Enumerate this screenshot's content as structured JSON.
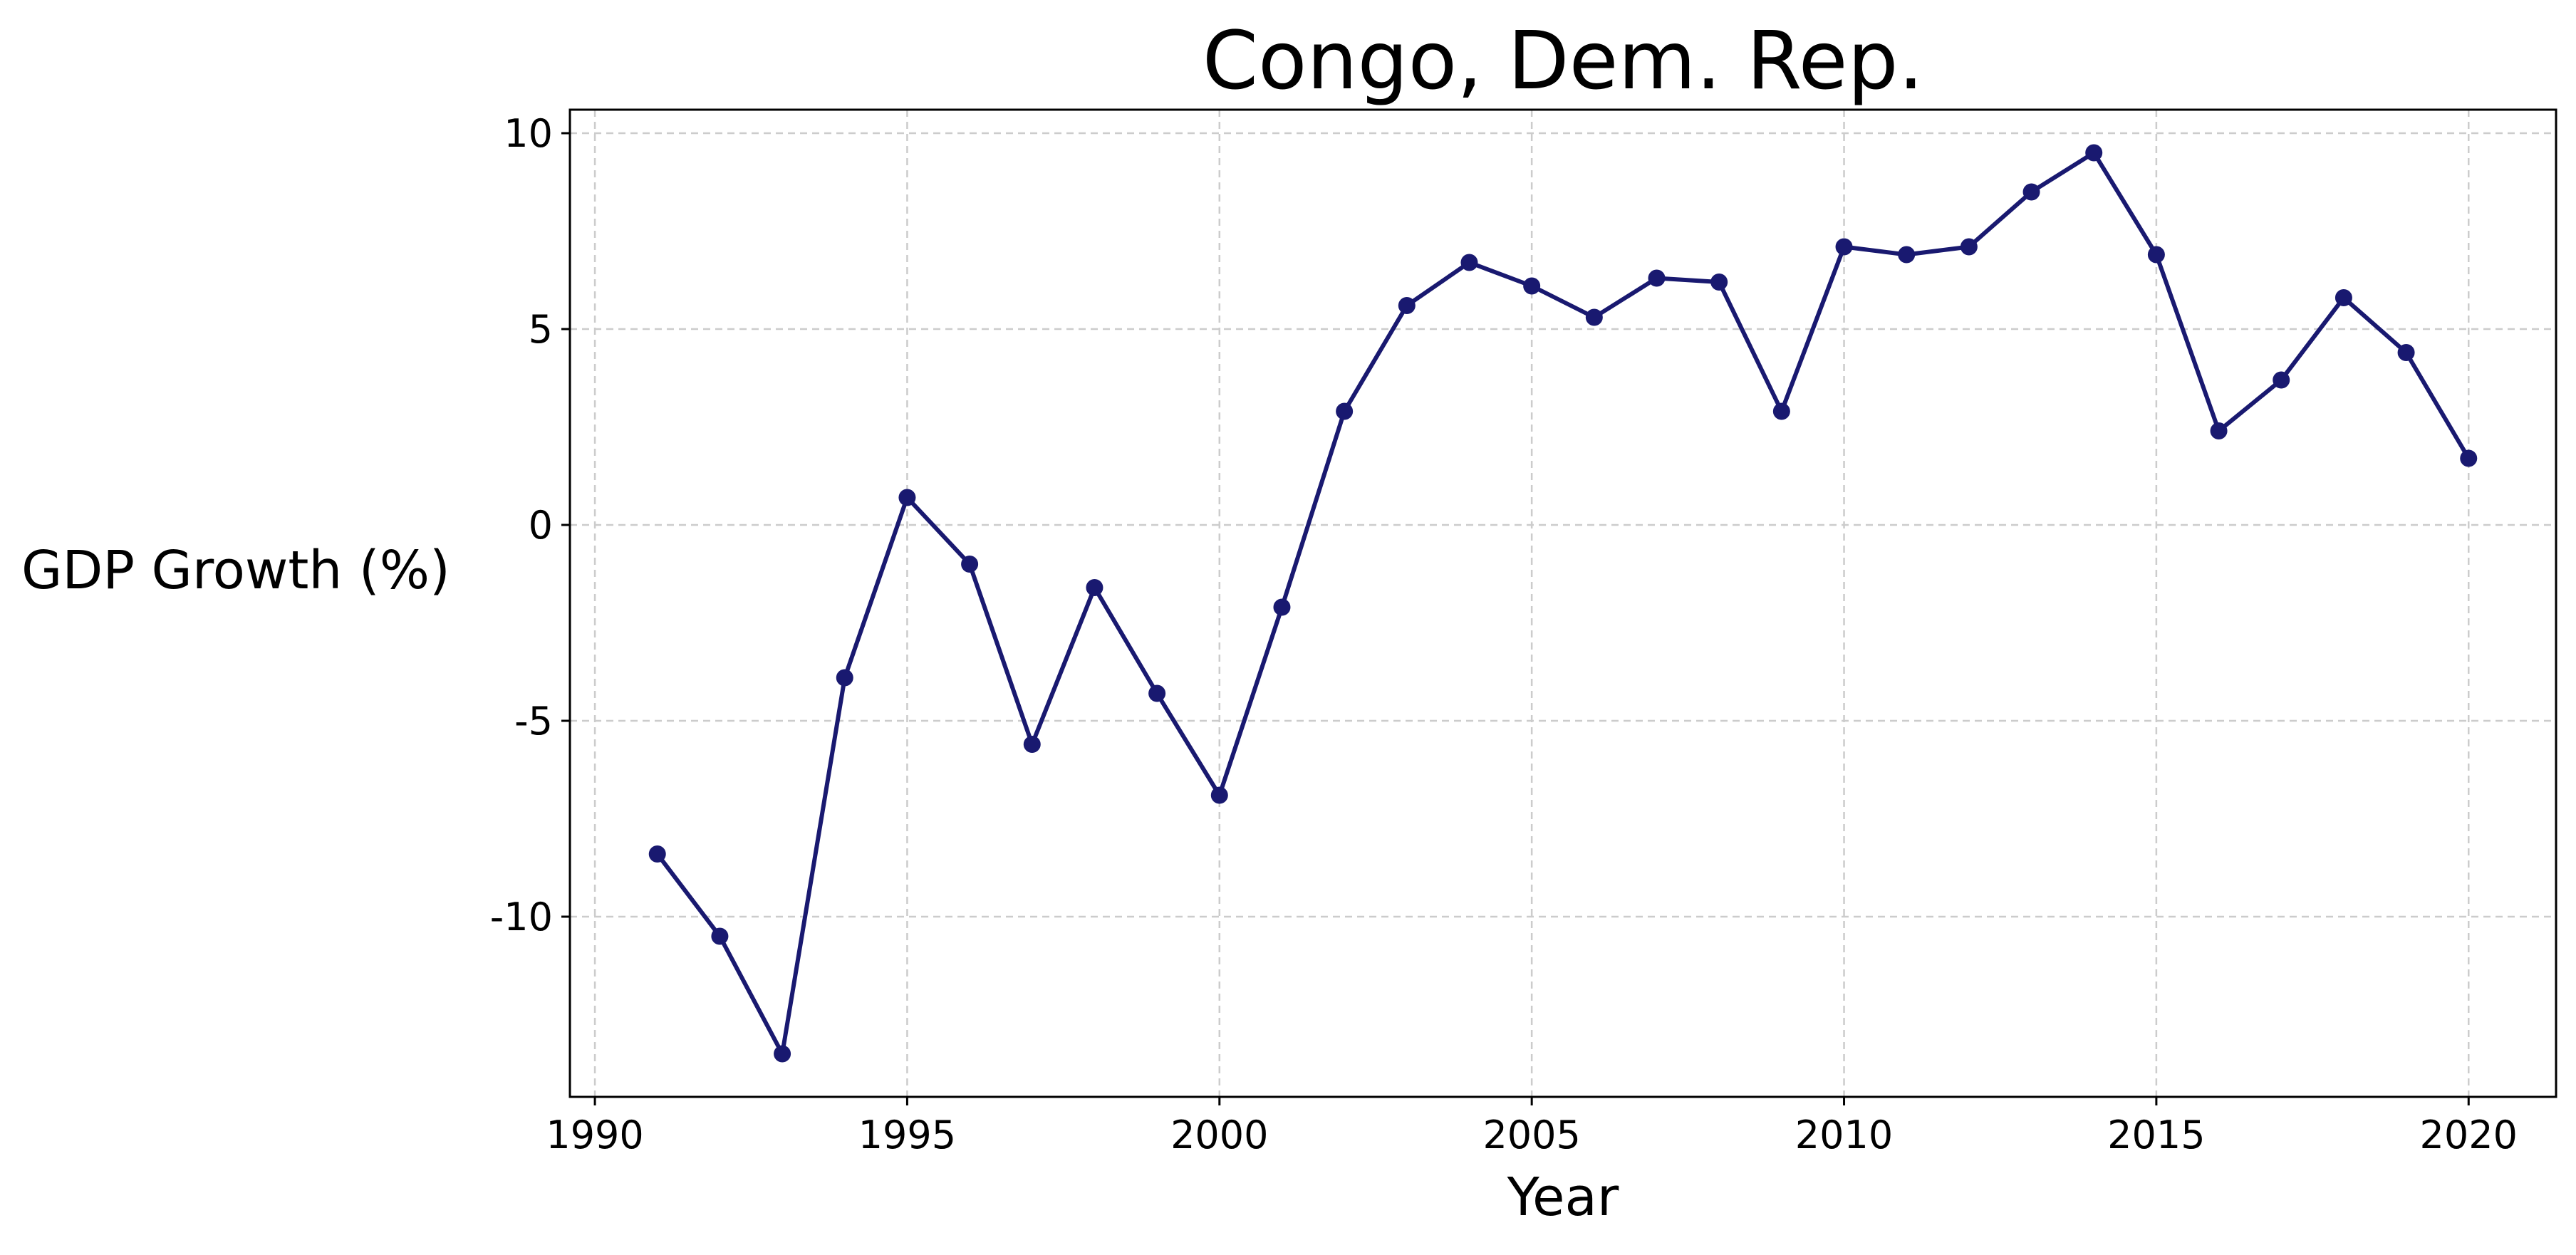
{
  "chart_data": {
    "type": "line",
    "title": "Congo, Dem. Rep.",
    "xlabel": "Year",
    "ylabel": "GDP Growth (%)",
    "xlim": [
      1989.6,
      2021.4
    ],
    "ylim": [
      -14.6,
      10.6
    ],
    "xticks": [
      1990,
      1995,
      2000,
      2005,
      2010,
      2015,
      2020
    ],
    "yticks": [
      10,
      5,
      0,
      -5,
      -10
    ],
    "ytick_labels": [
      "10",
      "5",
      "0",
      "-5",
      "-10"
    ],
    "grid": true,
    "legend": "none",
    "series": [
      {
        "color": "#191970",
        "x": [
          1991,
          1992,
          1993,
          1994,
          1995,
          1996,
          1997,
          1998,
          1999,
          2000,
          2001,
          2002,
          2003,
          2004,
          2005,
          2006,
          2007,
          2008,
          2009,
          2010,
          2011,
          2012,
          2013,
          2014,
          2015,
          2016,
          2017,
          2018,
          2019,
          2020
        ],
        "y": [
          -8.4,
          -10.5,
          -13.5,
          -3.9,
          0.7,
          -1.0,
          -5.6,
          -1.6,
          -4.3,
          -6.9,
          -2.1,
          2.9,
          5.6,
          6.7,
          6.1,
          5.3,
          6.3,
          6.2,
          2.9,
          7.1,
          6.9,
          7.1,
          8.5,
          9.5,
          6.9,
          2.4,
          3.7,
          5.8,
          4.4,
          1.7
        ]
      }
    ]
  }
}
